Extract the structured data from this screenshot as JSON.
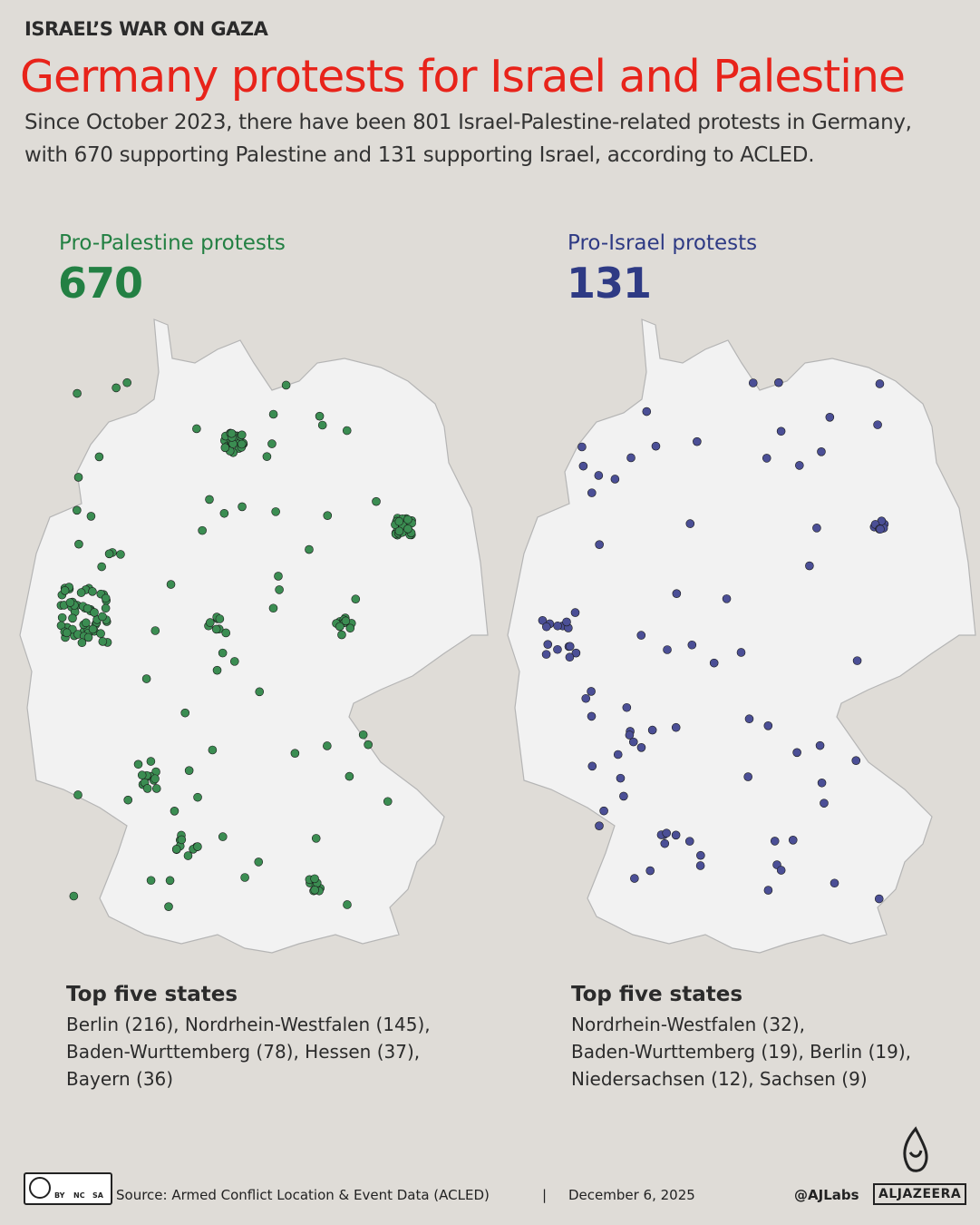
{
  "header": {
    "kicker": "ISRAEL’S WAR ON GAZA",
    "title": "Germany protests for Israel and Palestine",
    "subtitle": [
      "Since October 2023, there have been 801 Israel-Palestine-related protests in Germany,",
      "with 670 supporting Palestine and 131 supporting Israel, according to ACLED."
    ]
  },
  "panels": [
    {
      "label": "Pro-Palestine protests",
      "count": 670,
      "color": "#238043",
      "top_heading": "Top five states",
      "top_states": [
        "Berlin (216), Nordrhein-Westfalen (145),",
        "Baden-Wurttemberg (78), Hessen (37),",
        "Bayern (36)"
      ]
    },
    {
      "label": "Pro-Israel protests",
      "count": 131,
      "color": "#2e3a84",
      "top_heading": "Top five states",
      "top_states": [
        "Nordrhein-Westfalen (32),",
        "Baden-Wurttemberg (19), Berlin (19),",
        "Niedersachsen (12), Sachsen (9)"
      ]
    }
  ],
  "footer": {
    "cc_badge": [
      "BY",
      "NC",
      "SA"
    ],
    "source": "Source:  Armed Conflict Location & Event Data (ACLED)",
    "separator": "|",
    "date": "December 6, 2025",
    "handle": "@AJLabs",
    "logo": "ALJAZEERA"
  }
}
